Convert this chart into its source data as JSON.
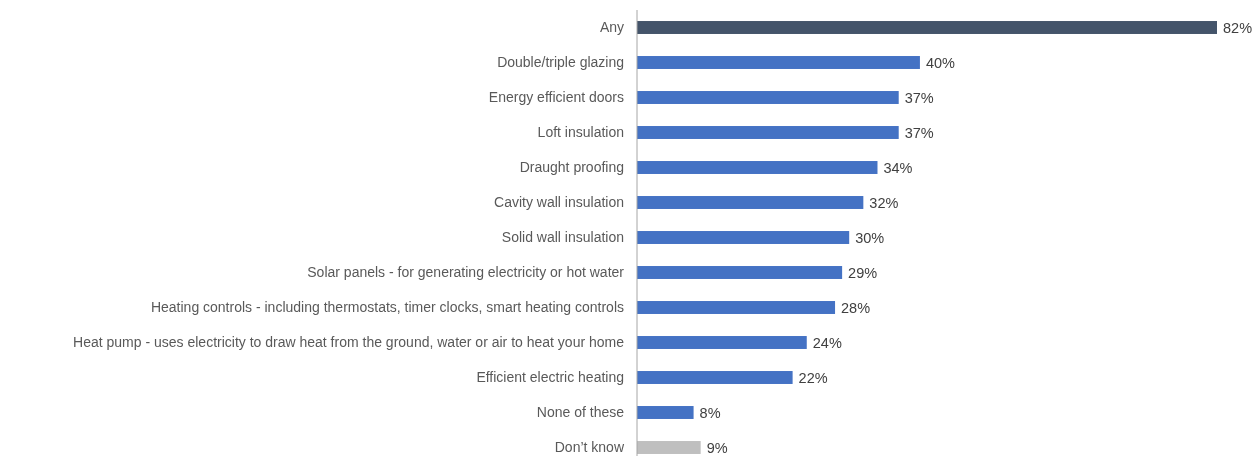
{
  "chart_data": {
    "type": "bar",
    "orientation": "horizontal",
    "categories": [
      "Any",
      "Double/triple glazing",
      "Energy efficient doors",
      "Loft insulation",
      "Draught proofing",
      "Cavity wall insulation",
      "Solid wall insulation",
      "Solar panels - for generating electricity or hot water",
      "Heating controls - including thermostats, timer clocks, smart heating controls",
      "Heat pump - uses electricity to draw heat from the ground, water or air to heat your home",
      "Efficient electric heating",
      "None of these",
      "Don’t know"
    ],
    "values": [
      82,
      40,
      37,
      37,
      34,
      32,
      30,
      29,
      28,
      24,
      22,
      8,
      9
    ],
    "colors": [
      "#44546a",
      "#4472c4",
      "#4472c4",
      "#4472c4",
      "#4472c4",
      "#4472c4",
      "#4472c4",
      "#4472c4",
      "#4472c4",
      "#4472c4",
      "#4472c4",
      "#4472c4",
      "#bfbfbf"
    ],
    "value_labels": [
      "82%",
      "40%",
      "37%",
      "37%",
      "34%",
      "32%",
      "30%",
      "29%",
      "28%",
      "24%",
      "22%",
      "8%",
      "9%"
    ]
  }
}
